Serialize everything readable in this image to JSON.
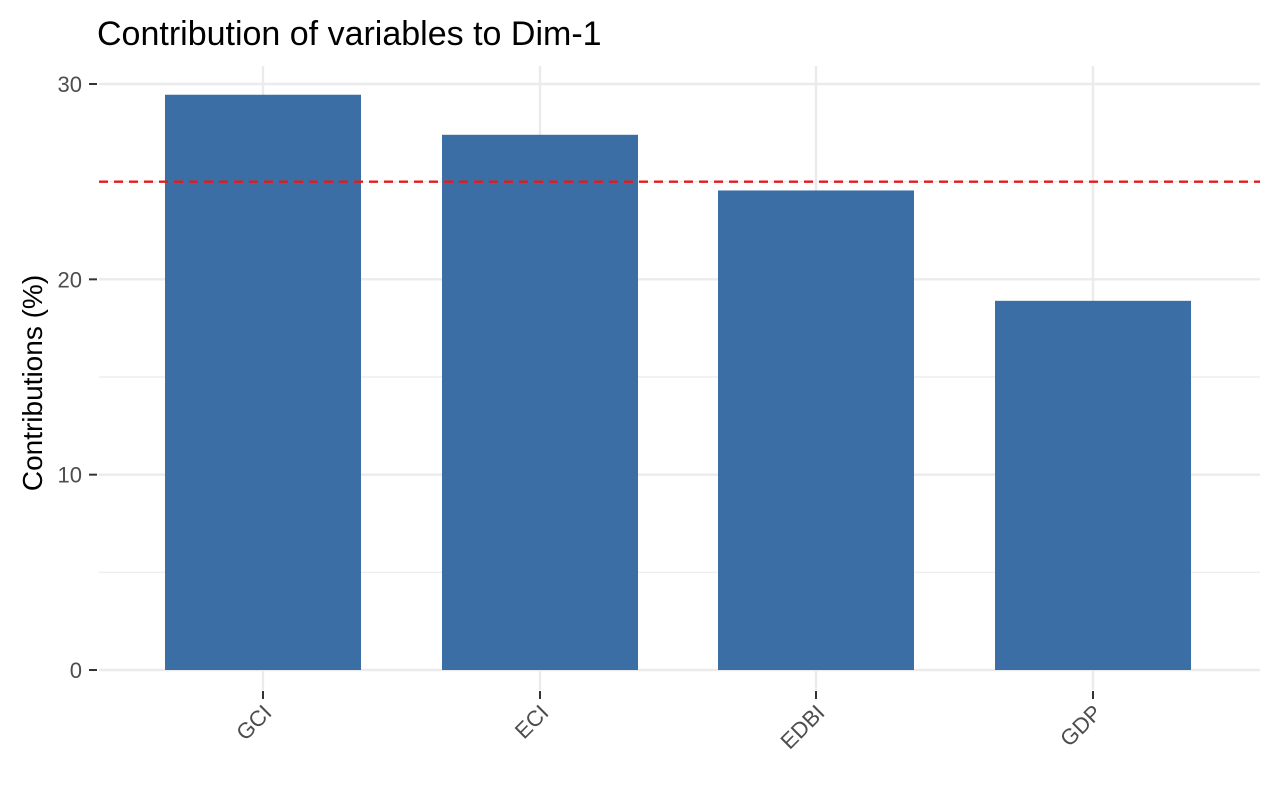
{
  "chart_data": {
    "type": "bar",
    "title": "Contribution of variables to Dim-1",
    "xlabel": "",
    "ylabel": "Contributions (%)",
    "categories": [
      "GCI",
      "ECI",
      "EDBI",
      "GDP"
    ],
    "values": [
      29.45,
      27.4,
      24.55,
      18.9
    ],
    "ylim": [
      0,
      30
    ],
    "yticks": [
      0,
      10,
      20,
      30
    ],
    "ytick_labels": [
      "0",
      "10",
      "20",
      "30"
    ],
    "reference_line": {
      "value": 25,
      "style": "dashed",
      "color": "#e41a1c"
    },
    "grid": true,
    "legend": "none",
    "colors": {
      "bar": "#3a6ea5",
      "grid": "#ebebeb",
      "tick_text": "#4d4d4d"
    }
  }
}
